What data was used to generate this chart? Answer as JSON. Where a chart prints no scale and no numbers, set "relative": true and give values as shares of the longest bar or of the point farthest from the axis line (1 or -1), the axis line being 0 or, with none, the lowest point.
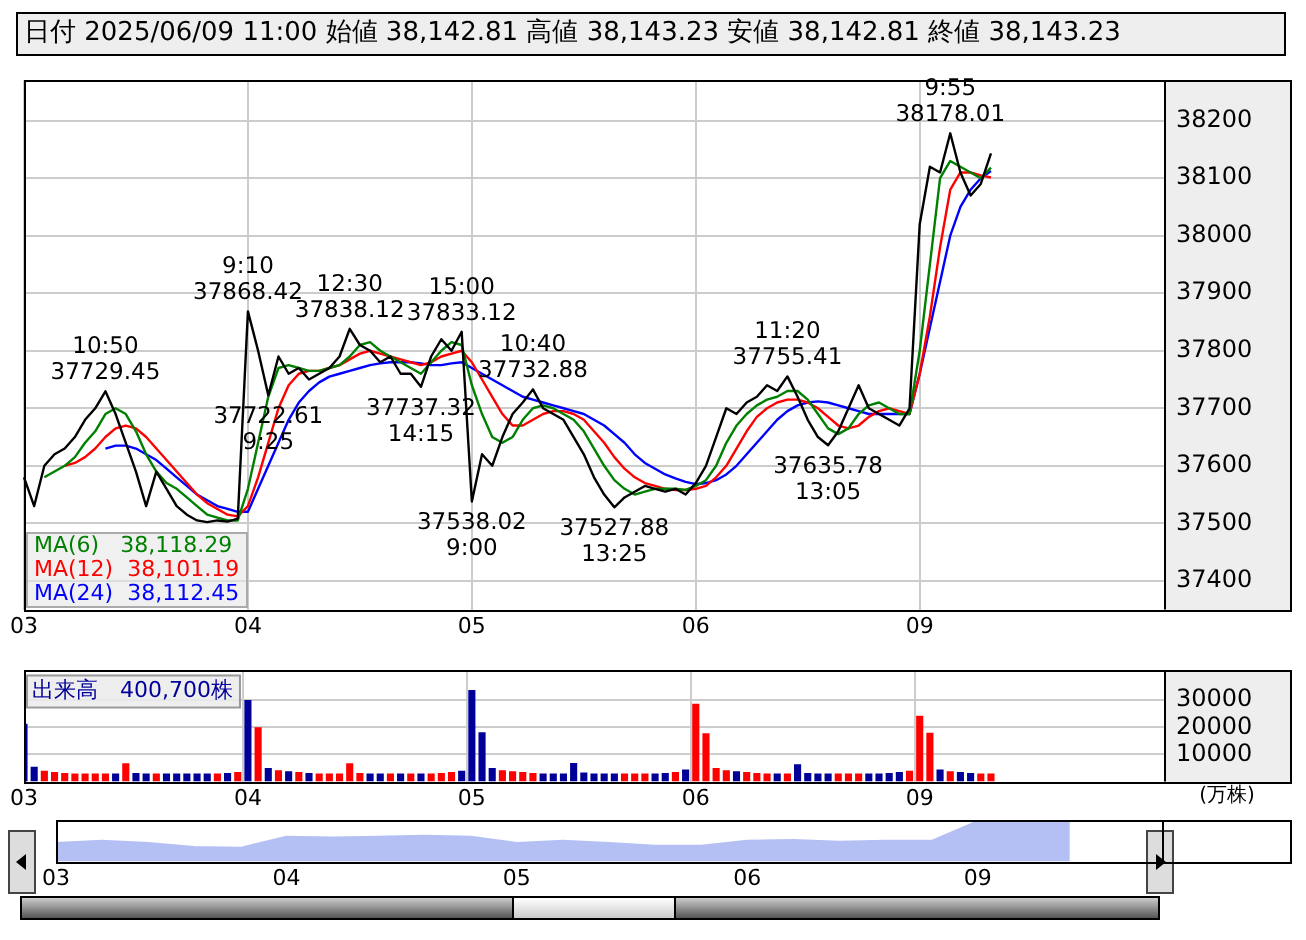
{
  "chart_data": [
    {
      "type": "line",
      "title": "日付 2025/06/09 11:00 始値 38,142.81 高値 38,143.23 安値 38,142.81 終値 38,143.23",
      "categories": [
        "03",
        null,
        null,
        null,
        null,
        null,
        null,
        null,
        null,
        null,
        null,
        null,
        null,
        null,
        null,
        null,
        null,
        null,
        null,
        null,
        null,
        null,
        "04",
        null,
        null,
        null,
        null,
        null,
        null,
        null,
        null,
        null,
        null,
        null,
        null,
        null,
        null,
        null,
        null,
        null,
        null,
        null,
        null,
        null,
        "05",
        null,
        null,
        null,
        null,
        null,
        null,
        null,
        null,
        null,
        null,
        null,
        null,
        null,
        null,
        null,
        null,
        null,
        null,
        null,
        null,
        null,
        "06",
        null,
        null,
        null,
        null,
        null,
        null,
        null,
        null,
        null,
        null,
        null,
        null,
        null,
        null,
        null,
        null,
        null,
        null,
        null,
        null,
        null,
        "09",
        null,
        null,
        null,
        null,
        null,
        null,
        null,
        null,
        null,
        null,
        null,
        null,
        null,
        null,
        null,
        null,
        null,
        null,
        null,
        null,
        null,
        null,
        null,
        null
      ],
      "series": [
        {
          "color": "#000000",
          "values": [
            37580,
            37530,
            37600,
            37620,
            37630,
            37650,
            37680,
            37700,
            37729.45,
            37690,
            37640,
            37590,
            37530,
            37590,
            37560,
            37530,
            37515,
            37505,
            37502,
            37505,
            37503,
            37508,
            37868.42,
            37800,
            37722.61,
            37790,
            37760,
            37770,
            37750,
            37760,
            37770,
            37790,
            37838.12,
            37810,
            37800,
            37780,
            37790,
            37760,
            37760,
            37737.32,
            37790,
            37820,
            37800,
            37833.12,
            37538.02,
            37620,
            37600,
            37650,
            37690,
            37710,
            37732.88,
            37700,
            37690,
            37680,
            37650,
            37620,
            37580,
            37550,
            37527.88,
            37545,
            37555,
            37565,
            37560,
            37555,
            37560,
            37550,
            37570,
            37600,
            37650,
            37700,
            37690,
            37710,
            37720,
            37740,
            37730,
            37755.41,
            37720,
            37680,
            37650,
            37635.78,
            37660,
            37700,
            37740,
            37700,
            37690,
            37680,
            37670,
            37700,
            38020,
            38120,
            38110,
            38178.01,
            38110,
            38070,
            38090,
            38143.23,
            null,
            null,
            null,
            null,
            null,
            null,
            null,
            null,
            null,
            null,
            null,
            null,
            null,
            null,
            null,
            null,
            null
          ]
        },
        {
          "name": "MA(6)   38,118.29",
          "color": "#008000",
          "values": [
            null,
            null,
            37580,
            37590,
            37600,
            37615,
            37640,
            37660,
            37690,
            37700,
            37690,
            37660,
            37620,
            37590,
            37570,
            37560,
            37545,
            37530,
            37515,
            37510,
            37505,
            37505,
            37560,
            37640,
            37720,
            37770,
            37775,
            37770,
            37765,
            37765,
            37770,
            37775,
            37790,
            37810,
            37815,
            37800,
            37790,
            37780,
            37770,
            37760,
            37780,
            37800,
            37815,
            37810,
            37740,
            37690,
            37650,
            37640,
            37650,
            37680,
            37700,
            37705,
            37700,
            37690,
            37680,
            37660,
            37630,
            37600,
            37575,
            37560,
            37550,
            37555,
            37560,
            37560,
            37560,
            37558,
            37565,
            37575,
            37600,
            37640,
            37670,
            37690,
            37705,
            37715,
            37720,
            37730,
            37730,
            37715,
            37690,
            37665,
            37655,
            37665,
            37690,
            37705,
            37710,
            37700,
            37690,
            37690,
            37800,
            37950,
            38100,
            38130,
            38120,
            38110,
            38100,
            38118.29,
            null,
            null,
            null,
            null,
            null,
            null,
            null,
            null,
            null,
            null,
            null,
            null,
            null,
            null,
            null,
            null,
            null
          ]
        },
        {
          "name": "MA(12)  38,101.19",
          "color": "#ff0000",
          "values": [
            null,
            null,
            null,
            null,
            37600,
            37605,
            37615,
            37630,
            37650,
            37665,
            37670,
            37665,
            37650,
            37630,
            37610,
            37590,
            37570,
            37550,
            37535,
            37525,
            37515,
            37512,
            37530,
            37580,
            37640,
            37700,
            37740,
            37760,
            37765,
            37765,
            37770,
            37775,
            37785,
            37795,
            37800,
            37795,
            37790,
            37785,
            37780,
            37775,
            37780,
            37790,
            37795,
            37800,
            37780,
            37750,
            37720,
            37690,
            37670,
            37670,
            37680,
            37690,
            37695,
            37695,
            37690,
            37680,
            37660,
            37640,
            37615,
            37595,
            37580,
            37570,
            37565,
            37560,
            37558,
            37558,
            37560,
            37565,
            37580,
            37600,
            37630,
            37660,
            37685,
            37700,
            37710,
            37715,
            37715,
            37710,
            37700,
            37685,
            37670,
            37665,
            37670,
            37685,
            37695,
            37700,
            37695,
            37690,
            37760,
            37860,
            37980,
            38080,
            38110,
            38110,
            38105,
            38101.19,
            null,
            null,
            null,
            null,
            null,
            null,
            null,
            null,
            null,
            null,
            null,
            null,
            null,
            null,
            null,
            null,
            null
          ]
        },
        {
          "name": "MA(24)  38,112.45",
          "color": "#0000ff",
          "values": [
            null,
            null,
            null,
            null,
            null,
            null,
            null,
            null,
            37630,
            37635,
            37635,
            37630,
            37620,
            37610,
            37595,
            37580,
            37565,
            37550,
            37540,
            37530,
            37525,
            37520,
            37520,
            37560,
            37600,
            37640,
            37680,
            37710,
            37730,
            37745,
            37755,
            37760,
            37765,
            37770,
            37775,
            37778,
            37780,
            37780,
            37780,
            37778,
            37775,
            37775,
            37778,
            37780,
            37770,
            37760,
            37750,
            37740,
            37730,
            37720,
            37715,
            37710,
            37705,
            37700,
            37695,
            37690,
            37680,
            37670,
            37655,
            37640,
            37620,
            37605,
            37595,
            37585,
            37578,
            37572,
            37568,
            37570,
            37575,
            37585,
            37600,
            37620,
            37640,
            37660,
            37680,
            37695,
            37705,
            37710,
            37712,
            37710,
            37705,
            37700,
            37695,
            37690,
            37690,
            37690,
            37690,
            37690,
            37760,
            37840,
            37920,
            38000,
            38050,
            38080,
            38100,
            38112.45,
            null,
            null,
            null,
            null,
            null,
            null,
            null,
            null,
            null,
            null,
            null,
            null,
            null,
            null,
            null,
            null,
            null
          ]
        }
      ],
      "ylim": [
        37350,
        38270
      ],
      "yticks": [
        37400,
        37500,
        37600,
        37700,
        37800,
        37900,
        38000,
        38100,
        38200
      ],
      "grid": true,
      "legend": "bottom left",
      "marker": "none",
      "annotations": [
        {
          "text": "10:50\n37729.45",
          "y": 37729.45
        },
        {
          "text": "9:10\n37868.42",
          "y": 37868.42
        },
        {
          "text": "37722.61\n9:25",
          "y": 37722.61
        },
        {
          "text": "12:30\n37838.12",
          "y": 37838.12
        },
        {
          "text": "37737.32\n14:15",
          "y": 37737.32
        },
        {
          "text": "15:00\n37833.12",
          "y": 37833.12
        },
        {
          "text": "37538.02\n9:00",
          "y": 37538.02
        },
        {
          "text": "10:40\n37732.88",
          "y": 37732.88
        },
        {
          "text": "37527.88\n13:25",
          "y": 37527.88
        },
        {
          "text": "11:20\n37755.41",
          "y": 37755.41
        },
        {
          "text": "37635.78\n13:05",
          "y": 37635.78
        },
        {
          "text": "9:55\n38178.01",
          "y": 38178.01
        }
      ]
    },
    {
      "type": "bar",
      "categories": [
        "03",
        null,
        null,
        null,
        null,
        null,
        null,
        null,
        null,
        null,
        null,
        null,
        null,
        null,
        null,
        null,
        null,
        null,
        null,
        null,
        null,
        null,
        "04",
        null,
        null,
        null,
        null,
        null,
        null,
        null,
        null,
        null,
        null,
        null,
        null,
        null,
        null,
        null,
        null,
        null,
        null,
        null,
        null,
        null,
        "05",
        null,
        null,
        null,
        null,
        null,
        null,
        null,
        null,
        null,
        null,
        null,
        null,
        null,
        null,
        null,
        null,
        null,
        null,
        null,
        null,
        null,
        "06",
        null,
        null,
        null,
        null,
        null,
        null,
        null,
        null,
        null,
        null,
        null,
        null,
        null,
        null,
        null,
        null,
        null,
        null,
        null,
        null,
        null,
        "09",
        null,
        null,
        null,
        null,
        null,
        null,
        null,
        null,
        null,
        null,
        null,
        null,
        null,
        null,
        null,
        null,
        null,
        null,
        null,
        null,
        null,
        null,
        null,
        null
      ],
      "values": [
        21300,
        5500,
        4000,
        3500,
        3200,
        3000,
        3000,
        3000,
        3000,
        3000,
        6800,
        3200,
        3000,
        3000,
        3000,
        3000,
        3000,
        3000,
        3000,
        3000,
        3200,
        3500,
        30100,
        20000,
        5000,
        4200,
        3800,
        3500,
        3200,
        3000,
        3000,
        3000,
        6800,
        3200,
        3000,
        3000,
        3000,
        3000,
        3000,
        3000,
        3000,
        3200,
        3500,
        4000,
        33800,
        18200,
        5000,
        4200,
        3800,
        3500,
        3200,
        3000,
        3000,
        3000,
        6900,
        3400,
        3000,
        3000,
        3000,
        3000,
        3000,
        3000,
        3000,
        3200,
        3500,
        4500,
        28700,
        17800,
        5000,
        4200,
        3800,
        3500,
        3200,
        3000,
        3000,
        3000,
        6400,
        3200,
        3000,
        3000,
        3000,
        3000,
        3000,
        3000,
        3000,
        3200,
        3500,
        4000,
        24300,
        18000,
        4500,
        3800,
        3500,
        3200,
        3000,
        3000,
        null,
        null,
        null,
        null,
        null,
        null,
        null,
        null,
        null,
        null,
        null,
        null,
        null,
        null,
        null,
        null,
        null
      ],
      "colors": [
        "#000099",
        "#000099",
        "#ff0000",
        "#ff0000",
        "#ff0000",
        "#ff0000",
        "#ff0000",
        "#ff0000",
        "#ff0000",
        "#000099",
        "#ff0000",
        "#000099",
        "#000099",
        "#ff0000",
        "#000099",
        "#000099",
        "#000099",
        "#000099",
        "#000099",
        "#ff0000",
        "#000099",
        "#ff0000",
        "#000099",
        "#ff0000",
        "#000099",
        "#ff0000",
        "#000099",
        "#ff0000",
        "#000099",
        "#ff0000",
        "#ff0000",
        "#ff0000",
        "#ff0000",
        "#ff0000",
        "#000099",
        "#000099",
        "#ff0000",
        "#000099",
        "#ff0000",
        "#000099",
        "#ff0000",
        "#ff0000",
        "#ff0000",
        "#000099",
        "#000099",
        "#000099",
        "#000099",
        "#ff0000",
        "#ff0000",
        "#ff0000",
        "#ff0000",
        "#000099",
        "#000099",
        "#000099",
        "#000099",
        "#000099",
        "#000099",
        "#000099",
        "#000099",
        "#ff0000",
        "#ff0000",
        "#ff0000",
        "#000099",
        "#000099",
        "#ff0000",
        "#000099",
        "#ff0000",
        "#ff0000",
        "#ff0000",
        "#ff0000",
        "#000099",
        "#ff0000",
        "#ff0000",
        "#ff0000",
        "#000099",
        "#ff0000",
        "#000099",
        "#000099",
        "#000099",
        "#000099",
        "#ff0000",
        "#ff0000",
        "#ff0000",
        "#000099",
        "#000099",
        "#000099",
        "#000099",
        "#ff0000",
        "#ff0000",
        "#ff0000",
        "#000099",
        "#ff0000",
        "#000099",
        "#000099",
        "#ff0000",
        "#ff0000",
        null,
        null,
        null,
        null,
        null,
        null,
        null,
        null,
        null,
        null,
        null,
        null,
        null,
        null,
        null,
        null,
        null
      ],
      "ylim": [
        0,
        41000
      ],
      "yticks": [
        10000,
        20000,
        30000
      ],
      "ylabel": "(万株)",
      "grid": true,
      "annotations": [
        "出来高　400,700株"
      ]
    },
    {
      "type": "area",
      "relative": true,
      "categories": [
        "03",
        null,
        null,
        null,
        null,
        "04",
        null,
        null,
        null,
        null,
        "05",
        null,
        null,
        null,
        null,
        "06",
        null,
        null,
        null,
        null,
        "09",
        null,
        null,
        null,
        null
      ],
      "values": [
        0.45,
        0.5,
        0.45,
        0.35,
        0.33,
        0.6,
        0.58,
        0.6,
        0.62,
        0.6,
        0.45,
        0.5,
        0.45,
        0.38,
        0.38,
        0.5,
        0.52,
        0.48,
        0.5,
        0.5,
        0.97,
        1,
        0.99,
        null,
        null
      ],
      "color": "#b4c0f4",
      "tick_labels": "x"
    }
  ]
}
